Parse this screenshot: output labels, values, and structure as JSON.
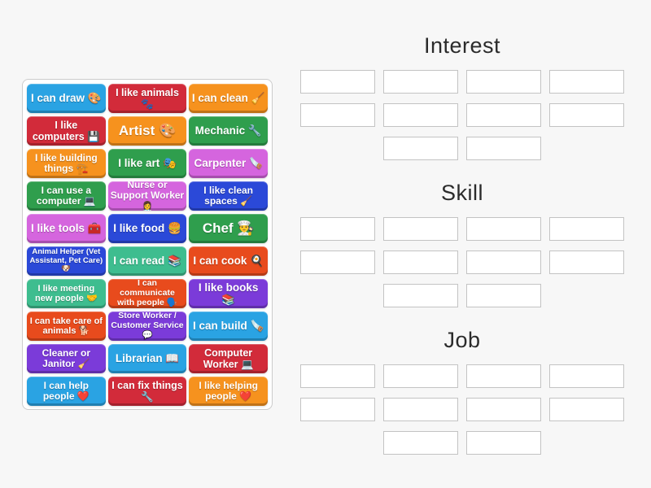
{
  "palette": {
    "sky": "#2aa3e3",
    "royal": "#2b49d8",
    "crimson": "#d22b3a",
    "vermilion": "#e84b1d",
    "orange": "#f6921e",
    "green": "#2f9e4d",
    "mint": "#3ebd8f",
    "orchid": "#d565de",
    "grape": "#7b3bd9",
    "tile_text": "#ffffff",
    "heading_text": "#2b2b2b",
    "slot_border": "#c3c3c3",
    "board_border": "#cccccc"
  },
  "board": {
    "tiles": [
      {
        "label": "I can draw 🎨",
        "color": "sky"
      },
      {
        "label": "I like animals 🐾",
        "color": "crimson"
      },
      {
        "label": "I can clean 🧹",
        "color": "orange"
      },
      {
        "label": "I like computers 💾",
        "color": "crimson"
      },
      {
        "label": "Artist 🎨",
        "color": "orange"
      },
      {
        "label": "Mechanic 🔧",
        "color": "green"
      },
      {
        "label": "I like building things 🏗️",
        "color": "orange"
      },
      {
        "label": "I like art 🎭",
        "color": "green"
      },
      {
        "label": "Carpenter 🪚",
        "color": "orchid"
      },
      {
        "label": "I can use a computer 💻",
        "color": "green"
      },
      {
        "label": "Nurse or Support Worker 👩‍⚕️",
        "color": "orchid"
      },
      {
        "label": "I like clean spaces 🧹",
        "color": "royal"
      },
      {
        "label": "I like tools 🧰",
        "color": "orchid"
      },
      {
        "label": "I like food 🍔",
        "color": "royal"
      },
      {
        "label": "Chef 👨‍🍳",
        "color": "green"
      },
      {
        "label": "Animal Helper (Vet Assistant, Pet Care) 🐶",
        "color": "royal"
      },
      {
        "label": "I can read 📚",
        "color": "mint"
      },
      {
        "label": "I can cook 🍳",
        "color": "vermilion"
      },
      {
        "label": "I like meeting new people 🤝",
        "color": "mint"
      },
      {
        "label": "I can communicate with people 🗣️",
        "color": "vermilion"
      },
      {
        "label": "I like books 📚",
        "color": "grape"
      },
      {
        "label": "I can take care of animals 🐕",
        "color": "vermilion"
      },
      {
        "label": "Store Worker / Customer Service 💬",
        "color": "grape"
      },
      {
        "label": "I can build 🪚",
        "color": "sky"
      },
      {
        "label": "Cleaner or Janitor 🧹",
        "color": "grape"
      },
      {
        "label": "Librarian 📖",
        "color": "sky"
      },
      {
        "label": "Computer Worker 💻",
        "color": "crimson"
      },
      {
        "label": "I can help people ❤️",
        "color": "sky"
      },
      {
        "label": "I can fix things 🔧",
        "color": "crimson"
      },
      {
        "label": "I like helping people ❤️",
        "color": "orange"
      }
    ]
  },
  "groups": [
    {
      "title": "Interest",
      "slot_rows": [
        4,
        4,
        2
      ]
    },
    {
      "title": "Skill",
      "slot_rows": [
        4,
        4,
        2
      ]
    },
    {
      "title": "Job",
      "slot_rows": [
        4,
        4,
        2
      ]
    }
  ]
}
